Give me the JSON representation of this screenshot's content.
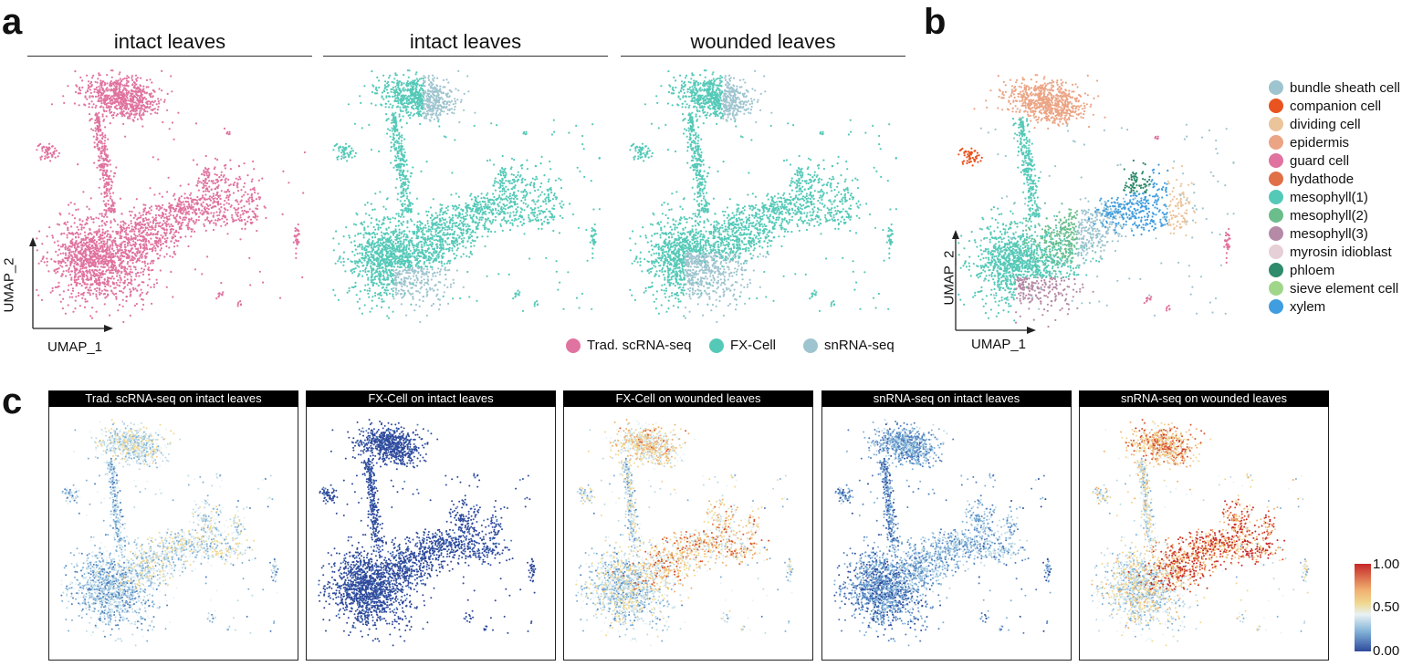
{
  "panel_labels": {
    "a": "a",
    "b": "b",
    "c": "c"
  },
  "panel_a": {
    "titles": [
      "intact leaves",
      "intact leaves",
      "wounded leaves"
    ],
    "xlabel": "UMAP_1",
    "ylabel": "UMAP_2",
    "legend": [
      {
        "label": "Trad. scRNA-seq",
        "color": "#e0739f"
      },
      {
        "label": "FX-Cell",
        "color": "#55c9b8"
      },
      {
        "label": "snRNA-seq",
        "color": "#9ec4cf"
      }
    ]
  },
  "panel_b": {
    "xlabel": "UMAP_1",
    "ylabel": "UMAP_2",
    "legend": [
      {
        "label": "bundle sheath cell",
        "color": "#9ec4cf"
      },
      {
        "label": "companion cell",
        "color": "#e8531f"
      },
      {
        "label": "dividing cell",
        "color": "#ebc49b"
      },
      {
        "label": "epidermis",
        "color": "#eba585"
      },
      {
        "label": "guard cell",
        "color": "#e0739f"
      },
      {
        "label": "hydathode",
        "color": "#e07048"
      },
      {
        "label": "mesophyll(1)",
        "color": "#55c9b8"
      },
      {
        "label": "mesophyll(2)",
        "color": "#6bbd8c"
      },
      {
        "label": "mesophyll(3)",
        "color": "#b58aa6"
      },
      {
        "label": "myrosin idioblast",
        "color": "#e6cfd6"
      },
      {
        "label": "phloem",
        "color": "#2e8b6b"
      },
      {
        "label": "sieve element cell",
        "color": "#a0d68a"
      },
      {
        "label": "xylem",
        "color": "#3f9de0"
      }
    ]
  },
  "panel_c": {
    "headers": [
      "Trad. scRNA-seq on intact leaves",
      "FX-Cell on intact leaves",
      "FX-Cell on wounded leaves",
      "snRNA-seq on intact leaves",
      "snRNA-seq on wounded leaves"
    ],
    "colorbar": {
      "ticks": [
        "1.00",
        "0.50",
        "0.00"
      ],
      "colors": [
        "#c62828",
        "#f0d28a",
        "#e8f2f5",
        "#7fb0d6",
        "#2e4a9c"
      ]
    }
  }
}
